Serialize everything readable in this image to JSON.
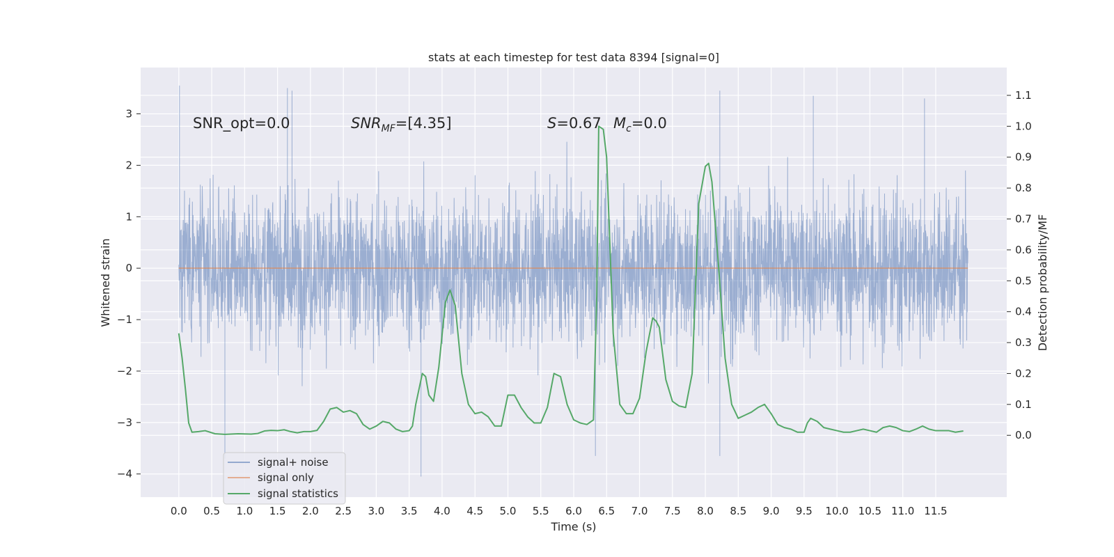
{
  "chart_data": {
    "type": "line",
    "title": "stats at each timestep for test data 8394 [signal=0]",
    "xlabel": "Time (s)",
    "ylabel_left": "Whitened strain",
    "ylabel_right": "Detection probability/MF",
    "xlim": [
      -0.58,
      12.58
    ],
    "ylim_left": [
      -4.45,
      3.9
    ],
    "ylim_right": [
      -0.2,
      1.19
    ],
    "x_ticks": [
      0.0,
      0.5,
      1.0,
      1.5,
      2.0,
      2.5,
      3.0,
      3.5,
      4.0,
      4.5,
      5.0,
      5.5,
      6.0,
      6.5,
      7.0,
      7.5,
      8.0,
      8.5,
      9.0,
      9.5,
      10.0,
      10.5,
      11.0,
      11.5
    ],
    "x_tick_labels": [
      "0.0",
      "0.5",
      "1.0",
      "1.5",
      "2.0",
      "2.5",
      "3.0",
      "3.5",
      "4.0",
      "4.5",
      "5.0",
      "5.5",
      "6.0",
      "6.5",
      "7.0",
      "7.5",
      "8.0",
      "8.5",
      "9.0",
      "9.5",
      "10.0",
      "10.5",
      "11.0",
      "11.5"
    ],
    "y_left_ticks": [
      -4,
      -3,
      -2,
      -1,
      0,
      1,
      2,
      3
    ],
    "y_left_tick_labels": [
      "−4",
      "−3",
      "−2",
      "−1",
      "0",
      "1",
      "2",
      "3"
    ],
    "y_right_ticks": [
      0.0,
      0.1,
      0.2,
      0.3,
      0.4,
      0.5,
      0.6,
      0.7,
      0.8,
      0.9,
      1.0,
      1.1
    ],
    "y_right_tick_labels": [
      "0.0",
      "0.1",
      "0.2",
      "0.3",
      "0.4",
      "0.5",
      "0.6",
      "0.7",
      "0.8",
      "0.9",
      "1.0",
      "1.1"
    ],
    "grid": true,
    "legend_position": "lower-left",
    "colors": {
      "background": "#eaeaf2",
      "grid": "#ffffff",
      "noise": "#4c72b0",
      "signal": "#dd8452",
      "statistics": "#55a868"
    },
    "annotations": {
      "snr_opt": "SNR_opt=0.0",
      "snr_mf_base": "SNR",
      "snr_mf_sub": "MF",
      "snr_mf_rest": "=[4.35]",
      "s_italic": "S",
      "s_rest": "=0.67",
      "mc_base": "M",
      "mc_sub": "c",
      "mc_rest": "=0.0"
    },
    "noise_series": {
      "name": "signal+ noise",
      "x_range": [
        0.0,
        11.99
      ],
      "approx_typical_envelope": [
        -2.0,
        2.2
      ],
      "notable_peaks": [
        {
          "x": 0.01,
          "y": 3.55
        },
        {
          "x": 0.7,
          "y": -3.7
        },
        {
          "x": 1.65,
          "y": 3.5
        },
        {
          "x": 1.72,
          "y": 3.45
        },
        {
          "x": 3.68,
          "y": -4.05
        },
        {
          "x": 6.33,
          "y": -3.65
        },
        {
          "x": 8.22,
          "y": 3.45
        },
        {
          "x": 8.22,
          "y": -3.65
        },
        {
          "x": 9.64,
          "y": 3.35
        },
        {
          "x": 11.33,
          "y": 3.3
        }
      ]
    },
    "signal_series": {
      "name": "signal only",
      "x": [
        0.0,
        11.99
      ],
      "y": [
        0.0,
        0.0
      ]
    },
    "series": [
      {
        "name": "signal statistics",
        "axis": "right",
        "x": [
          0.0,
          0.05,
          0.1,
          0.15,
          0.2,
          0.3,
          0.4,
          0.55,
          0.7,
          0.9,
          1.1,
          1.2,
          1.3,
          1.4,
          1.5,
          1.6,
          1.7,
          1.8,
          1.9,
          2.0,
          2.1,
          2.2,
          2.3,
          2.4,
          2.5,
          2.6,
          2.7,
          2.8,
          2.9,
          3.0,
          3.1,
          3.2,
          3.3,
          3.4,
          3.5,
          3.55,
          3.6,
          3.7,
          3.75,
          3.8,
          3.87,
          3.95,
          4.05,
          4.12,
          4.2,
          4.3,
          4.4,
          4.5,
          4.6,
          4.7,
          4.8,
          4.9,
          5.0,
          5.1,
          5.2,
          5.3,
          5.4,
          5.5,
          5.6,
          5.7,
          5.8,
          5.9,
          6.0,
          6.1,
          6.2,
          6.3,
          6.35,
          6.38,
          6.45,
          6.5,
          6.6,
          6.7,
          6.8,
          6.9,
          7.0,
          7.1,
          7.2,
          7.25,
          7.3,
          7.4,
          7.5,
          7.6,
          7.7,
          7.8,
          7.9,
          8.0,
          8.05,
          8.1,
          8.2,
          8.3,
          8.4,
          8.5,
          8.6,
          8.7,
          8.8,
          8.9,
          9.0,
          9.1,
          9.2,
          9.3,
          9.4,
          9.5,
          9.55,
          9.6,
          9.7,
          9.8,
          9.9,
          10.0,
          10.1,
          10.2,
          10.3,
          10.4,
          10.5,
          10.6,
          10.7,
          10.8,
          10.9,
          11.0,
          11.1,
          11.2,
          11.3,
          11.4,
          11.5,
          11.6,
          11.7,
          11.8,
          11.92
        ],
        "y": [
          0.33,
          0.25,
          0.15,
          0.04,
          0.01,
          0.012,
          0.015,
          0.005,
          0.003,
          0.005,
          0.004,
          0.006,
          0.014,
          0.016,
          0.015,
          0.018,
          0.012,
          0.008,
          0.012,
          0.012,
          0.016,
          0.045,
          0.085,
          0.09,
          0.075,
          0.08,
          0.07,
          0.035,
          0.02,
          0.03,
          0.045,
          0.04,
          0.02,
          0.012,
          0.015,
          0.03,
          0.1,
          0.2,
          0.19,
          0.13,
          0.11,
          0.22,
          0.43,
          0.47,
          0.42,
          0.2,
          0.1,
          0.07,
          0.075,
          0.06,
          0.03,
          0.03,
          0.13,
          0.13,
          0.09,
          0.06,
          0.04,
          0.04,
          0.09,
          0.2,
          0.19,
          0.1,
          0.05,
          0.04,
          0.035,
          0.05,
          0.45,
          1.0,
          0.99,
          0.9,
          0.33,
          0.1,
          0.07,
          0.07,
          0.12,
          0.27,
          0.38,
          0.37,
          0.35,
          0.18,
          0.11,
          0.095,
          0.09,
          0.2,
          0.75,
          0.87,
          0.88,
          0.82,
          0.55,
          0.25,
          0.1,
          0.055,
          0.065,
          0.075,
          0.09,
          0.1,
          0.07,
          0.035,
          0.025,
          0.02,
          0.01,
          0.01,
          0.04,
          0.055,
          0.045,
          0.025,
          0.02,
          0.015,
          0.01,
          0.01,
          0.015,
          0.02,
          0.015,
          0.01,
          0.025,
          0.03,
          0.025,
          0.015,
          0.012,
          0.02,
          0.03,
          0.02,
          0.015,
          0.015,
          0.015,
          0.01,
          0.014
        ]
      }
    ],
    "legend": [
      {
        "label": "signal+ noise",
        "color": "#4c72b0"
      },
      {
        "label": "signal only",
        "color": "#dd8452"
      },
      {
        "label": "signal statistics",
        "color": "#55a868"
      }
    ]
  }
}
